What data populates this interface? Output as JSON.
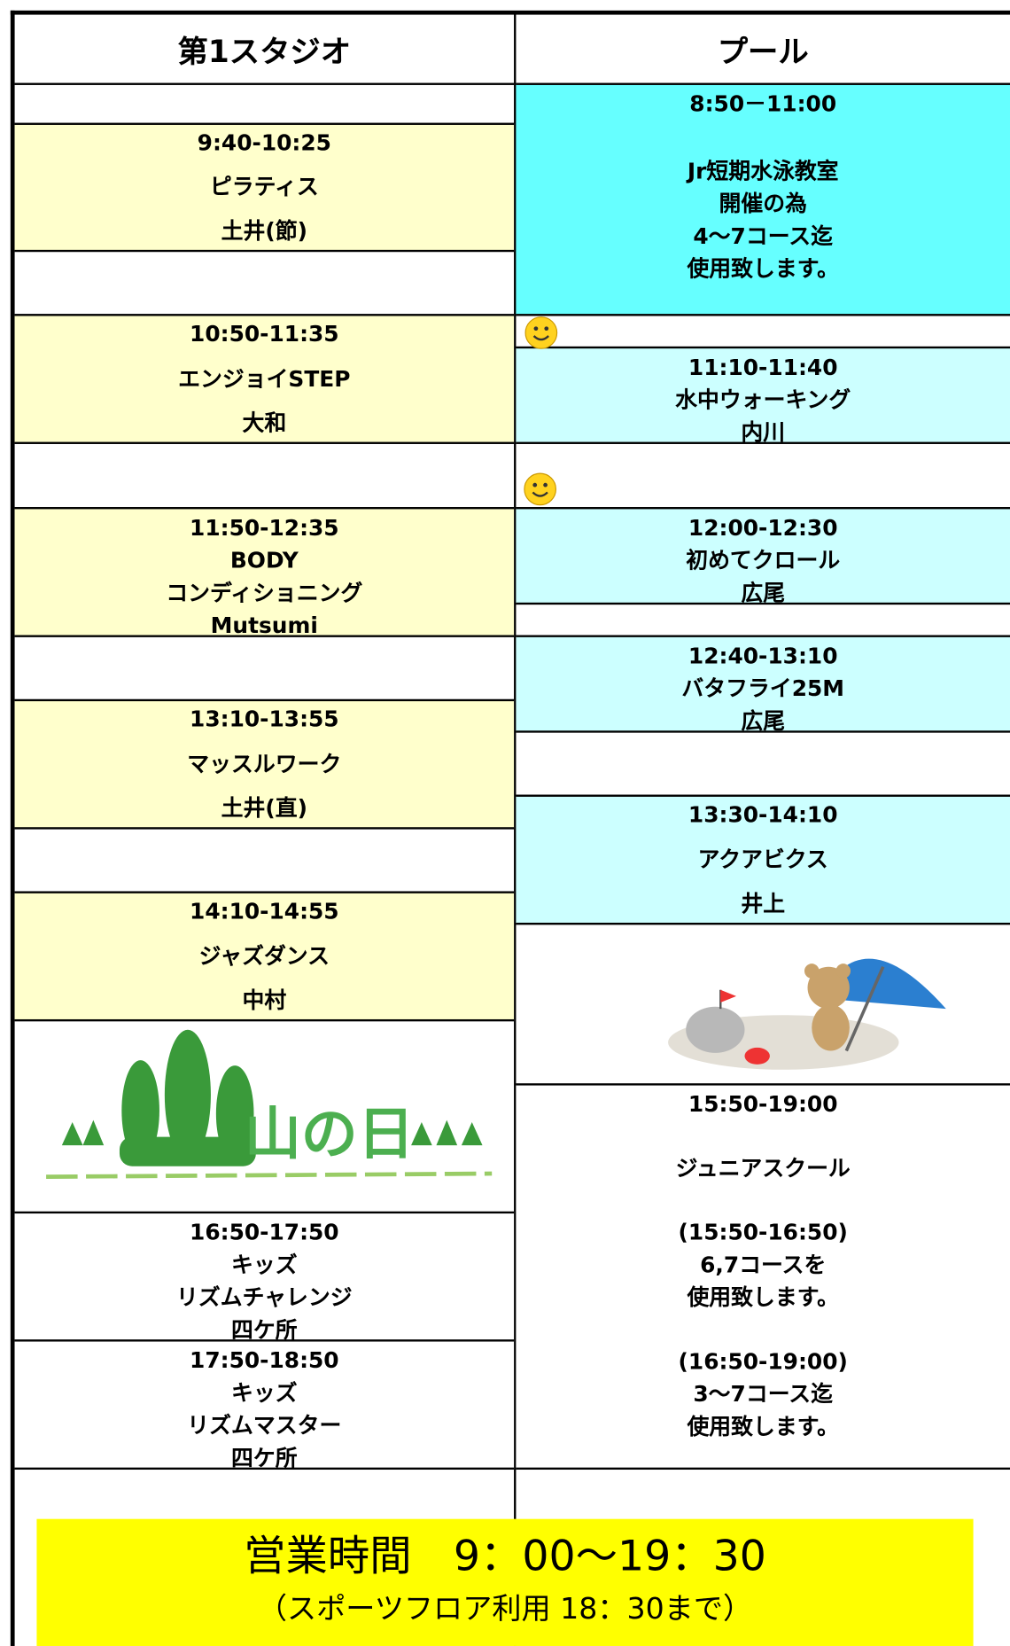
{
  "header": {
    "studio": "第1スタジオ",
    "pool": "プール"
  },
  "studio": [
    {
      "lines": [
        "9:40-10:25",
        "ピラティス",
        "土井(節)"
      ]
    },
    {
      "lines": [
        "10:50-11:35",
        "エンジョイSTEP",
        "大和"
      ]
    },
    {
      "lines": [
        "11:50-12:35",
        "BODY",
        "コンディショニング",
        "Mutsumi"
      ]
    },
    {
      "lines": [
        "13:10-13:55",
        "マッスルワーク",
        "土井(直)"
      ]
    },
    {
      "lines": [
        "14:10-14:55",
        "ジャズダンス",
        "中村"
      ]
    },
    {
      "lines": [
        "16:50-17:50",
        "キッズ",
        "リズムチャレンジ",
        "四ケ所"
      ]
    },
    {
      "lines": [
        "17:50-18:50",
        "キッズ",
        "リズムマスター",
        "四ケ所"
      ]
    }
  ],
  "pool": [
    {
      "lines": [
        "8:50－11:00",
        "Jr短期水泳教室",
        "開催の為",
        "4～7コース迄",
        "使用致します。"
      ]
    },
    {
      "lines": [
        "11:10-11:40",
        "水中ウォーキング",
        "内川"
      ]
    },
    {
      "lines": [
        "12:00-12:30",
        "初めてクロール",
        "広尾"
      ]
    },
    {
      "lines": [
        "12:40-13:10",
        "バタフライ25M",
        "広尾"
      ]
    },
    {
      "lines": [
        "13:30-14:10",
        "アクアビクス",
        "井上"
      ]
    },
    {
      "lines": [
        "15:50-19:00",
        "ジュニアスクール",
        "(15:50-16:50)",
        "6,7コースを",
        "使用致します。",
        "(16:50-19:00)",
        "3～7コース迄",
        "使用致します。"
      ]
    }
  ],
  "illustration": {
    "text": "山の日"
  },
  "footer": {
    "hours": "営業時間　9：00～19：30",
    "note": "（スポーツフロア利用 18：30まで）"
  }
}
